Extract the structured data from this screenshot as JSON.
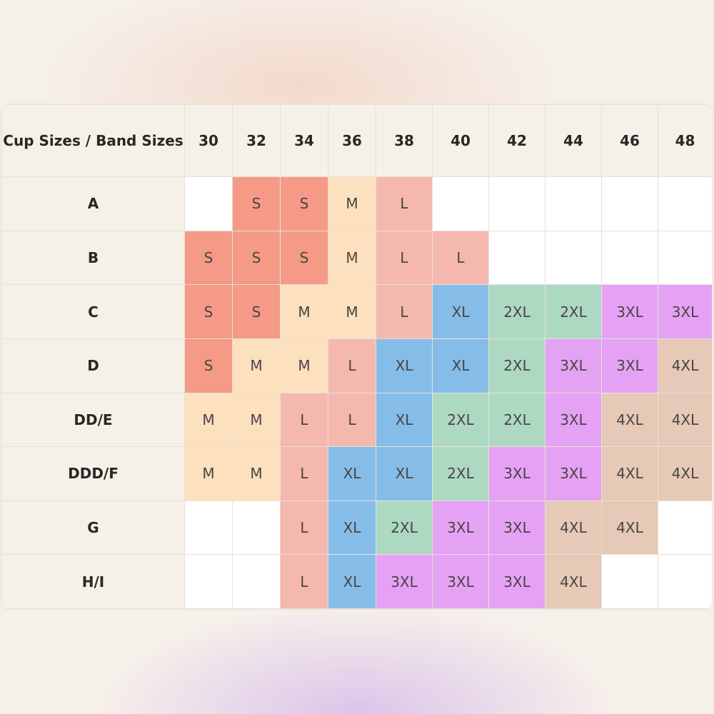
{
  "table": {
    "corner_label": "Cup Sizes / Band Sizes",
    "band_sizes": [
      "30",
      "32",
      "34",
      "36",
      "38",
      "40",
      "42",
      "44",
      "46",
      "48"
    ],
    "rows": [
      {
        "cup": "A",
        "sizes": [
          "",
          "S",
          "S",
          "M",
          "L",
          "",
          "",
          "",
          "",
          ""
        ]
      },
      {
        "cup": "B",
        "sizes": [
          "S",
          "S",
          "S",
          "M",
          "L",
          "L",
          "",
          "",
          "",
          ""
        ]
      },
      {
        "cup": "C",
        "sizes": [
          "S",
          "S",
          "M",
          "M",
          "L",
          "XL",
          "2XL",
          "2XL",
          "3XL",
          "3XL"
        ]
      },
      {
        "cup": "D",
        "sizes": [
          "S",
          "M",
          "M",
          "L",
          "XL",
          "XL",
          "2XL",
          "3XL",
          "3XL",
          "4XL"
        ]
      },
      {
        "cup": "DD/E",
        "sizes": [
          "M",
          "M",
          "L",
          "L",
          "XL",
          "2XL",
          "2XL",
          "3XL",
          "4XL",
          "4XL"
        ]
      },
      {
        "cup": "DDD/F",
        "sizes": [
          "M",
          "M",
          "L",
          "XL",
          "XL",
          "2XL",
          "3XL",
          "3XL",
          "4XL",
          "4XL"
        ]
      },
      {
        "cup": "G",
        "sizes": [
          "",
          "",
          "L",
          "XL",
          "2XL",
          "3XL",
          "3XL",
          "4XL",
          "4XL",
          ""
        ]
      },
      {
        "cup": "H/I",
        "sizes": [
          "",
          "",
          "L",
          "XL",
          "3XL",
          "3XL",
          "3XL",
          "4XL",
          "",
          ""
        ]
      }
    ]
  },
  "size_colors": {
    "S": "#f49a86",
    "M": "#fde0bd",
    "L": "#f5b8ae",
    "XL": "#86bde8",
    "2XL": "#add9c3",
    "3XL": "#e5a2f4",
    "4XL": "#e6c9b6"
  }
}
